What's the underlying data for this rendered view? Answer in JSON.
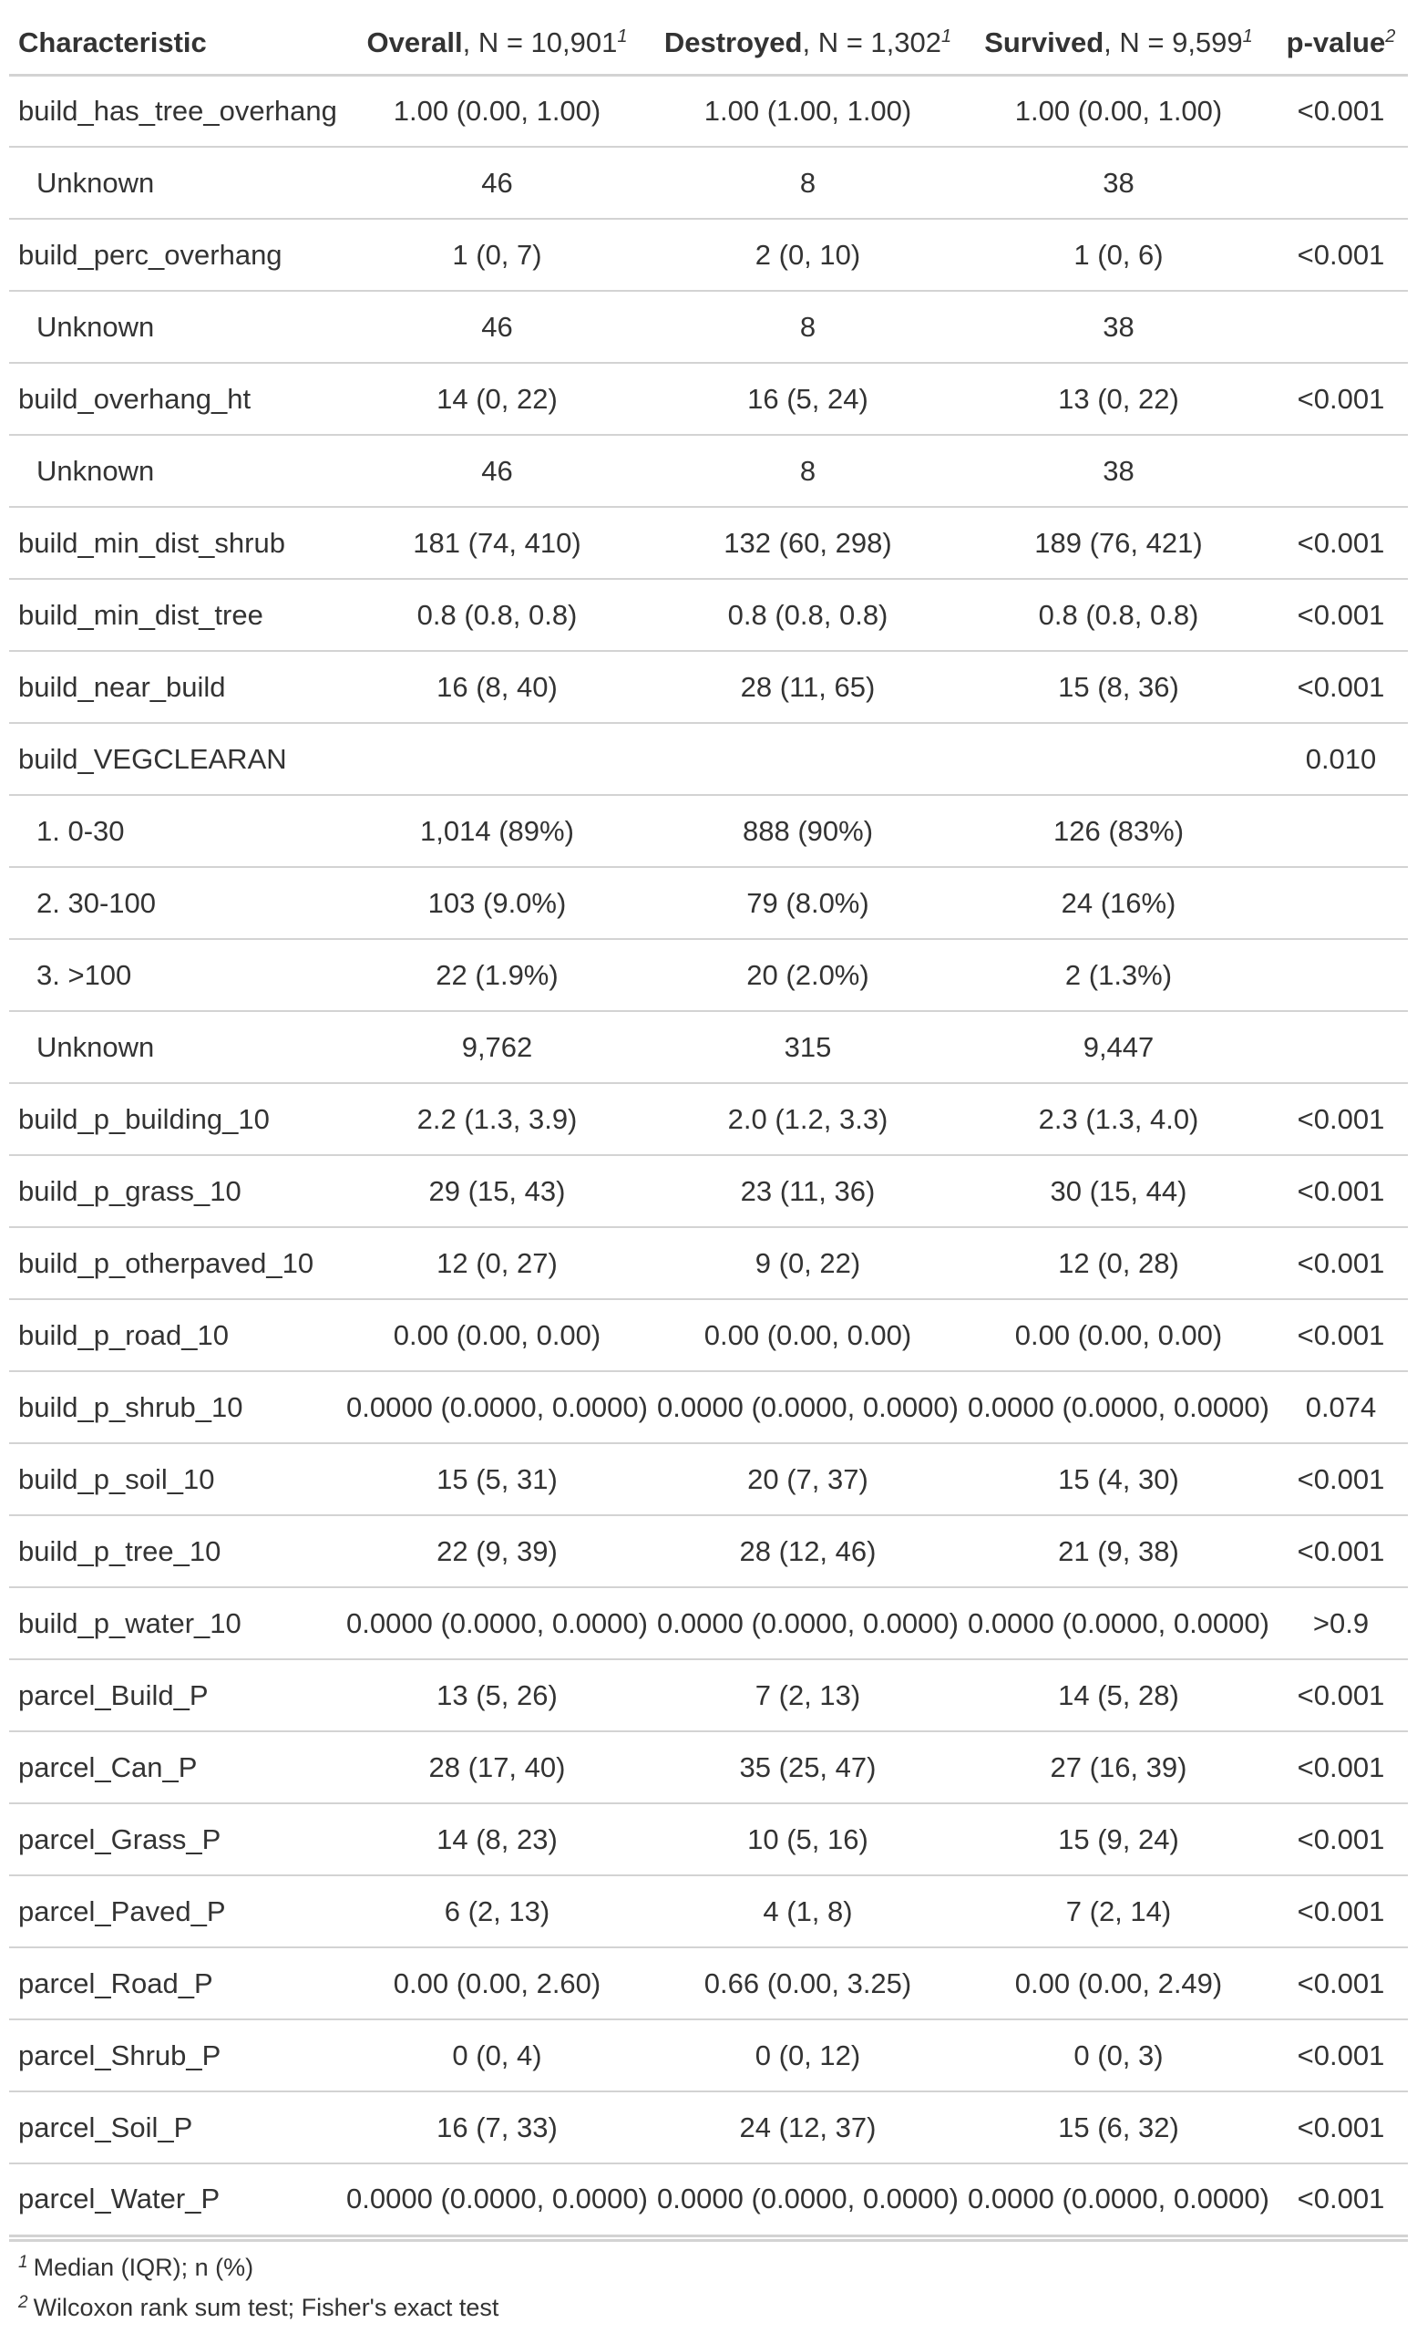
{
  "table": {
    "header": {
      "characteristic": "Characteristic",
      "overall_bold": "Overall",
      "overall_rest": ", N = 10,901",
      "overall_sup": "1",
      "destroyed_bold": "Destroyed",
      "destroyed_rest": ", N = 1,302",
      "destroyed_sup": "1",
      "survived_bold": "Survived",
      "survived_rest": ", N = 9,599",
      "survived_sup": "1",
      "pvalue_bold": "p-value",
      "pvalue_sup": "2"
    },
    "rows": [
      {
        "label": "build_has_tree_overhang",
        "overall": "1.00 (0.00, 1.00)",
        "destroyed": "1.00 (1.00, 1.00)",
        "survived": "1.00 (0.00, 1.00)",
        "p": "<0.001",
        "indent": false
      },
      {
        "label": "Unknown",
        "overall": "46",
        "destroyed": "8",
        "survived": "38",
        "p": "",
        "indent": true
      },
      {
        "label": "build_perc_overhang",
        "overall": "1 (0, 7)",
        "destroyed": "2 (0, 10)",
        "survived": "1 (0, 6)",
        "p": "<0.001",
        "indent": false
      },
      {
        "label": "Unknown",
        "overall": "46",
        "destroyed": "8",
        "survived": "38",
        "p": "",
        "indent": true
      },
      {
        "label": "build_overhang_ht",
        "overall": "14 (0, 22)",
        "destroyed": "16 (5, 24)",
        "survived": "13 (0, 22)",
        "p": "<0.001",
        "indent": false
      },
      {
        "label": "Unknown",
        "overall": "46",
        "destroyed": "8",
        "survived": "38",
        "p": "",
        "indent": true
      },
      {
        "label": "build_min_dist_shrub",
        "overall": "181 (74, 410)",
        "destroyed": "132 (60, 298)",
        "survived": "189 (76, 421)",
        "p": "<0.001",
        "indent": false
      },
      {
        "label": "build_min_dist_tree",
        "overall": "0.8 (0.8, 0.8)",
        "destroyed": "0.8 (0.8, 0.8)",
        "survived": "0.8 (0.8, 0.8)",
        "p": "<0.001",
        "indent": false
      },
      {
        "label": "build_near_build",
        "overall": "16 (8, 40)",
        "destroyed": "28 (11, 65)",
        "survived": "15 (8, 36)",
        "p": "<0.001",
        "indent": false
      },
      {
        "label": "build_VEGCLEARAN",
        "overall": "",
        "destroyed": "",
        "survived": "",
        "p": "0.010",
        "indent": false
      },
      {
        "label": "1. 0-30",
        "overall": "1,014 (89%)",
        "destroyed": "888 (90%)",
        "survived": "126 (83%)",
        "p": "",
        "indent": true
      },
      {
        "label": "2. 30-100",
        "overall": "103 (9.0%)",
        "destroyed": "79 (8.0%)",
        "survived": "24 (16%)",
        "p": "",
        "indent": true
      },
      {
        "label": "3. >100",
        "overall": "22 (1.9%)",
        "destroyed": "20 (2.0%)",
        "survived": "2 (1.3%)",
        "p": "",
        "indent": true
      },
      {
        "label": "Unknown",
        "overall": "9,762",
        "destroyed": "315",
        "survived": "9,447",
        "p": "",
        "indent": true
      },
      {
        "label": "build_p_building_10",
        "overall": "2.2 (1.3, 3.9)",
        "destroyed": "2.0 (1.2, 3.3)",
        "survived": "2.3 (1.3, 4.0)",
        "p": "<0.001",
        "indent": false
      },
      {
        "label": "build_p_grass_10",
        "overall": "29 (15, 43)",
        "destroyed": "23 (11, 36)",
        "survived": "30 (15, 44)",
        "p": "<0.001",
        "indent": false
      },
      {
        "label": "build_p_otherpaved_10",
        "overall": "12 (0, 27)",
        "destroyed": "9 (0, 22)",
        "survived": "12 (0, 28)",
        "p": "<0.001",
        "indent": false
      },
      {
        "label": "build_p_road_10",
        "overall": "0.00 (0.00, 0.00)",
        "destroyed": "0.00 (0.00, 0.00)",
        "survived": "0.00 (0.00, 0.00)",
        "p": "<0.001",
        "indent": false
      },
      {
        "label": "build_p_shrub_10",
        "overall": "0.0000 (0.0000, 0.0000)",
        "destroyed": "0.0000 (0.0000, 0.0000)",
        "survived": "0.0000 (0.0000, 0.0000)",
        "p": "0.074",
        "indent": false
      },
      {
        "label": "build_p_soil_10",
        "overall": "15 (5, 31)",
        "destroyed": "20 (7, 37)",
        "survived": "15 (4, 30)",
        "p": "<0.001",
        "indent": false
      },
      {
        "label": "build_p_tree_10",
        "overall": "22 (9, 39)",
        "destroyed": "28 (12, 46)",
        "survived": "21 (9, 38)",
        "p": "<0.001",
        "indent": false
      },
      {
        "label": "build_p_water_10",
        "overall": "0.0000 (0.0000, 0.0000)",
        "destroyed": "0.0000 (0.0000, 0.0000)",
        "survived": "0.0000 (0.0000, 0.0000)",
        "p": ">0.9",
        "indent": false
      },
      {
        "label": "parcel_Build_P",
        "overall": "13 (5, 26)",
        "destroyed": "7 (2, 13)",
        "survived": "14 (5, 28)",
        "p": "<0.001",
        "indent": false
      },
      {
        "label": "parcel_Can_P",
        "overall": "28 (17, 40)",
        "destroyed": "35 (25, 47)",
        "survived": "27 (16, 39)",
        "p": "<0.001",
        "indent": false
      },
      {
        "label": "parcel_Grass_P",
        "overall": "14 (8, 23)",
        "destroyed": "10 (5, 16)",
        "survived": "15 (9, 24)",
        "p": "<0.001",
        "indent": false
      },
      {
        "label": "parcel_Paved_P",
        "overall": "6 (2, 13)",
        "destroyed": "4 (1, 8)",
        "survived": "7 (2, 14)",
        "p": "<0.001",
        "indent": false
      },
      {
        "label": "parcel_Road_P",
        "overall": "0.00 (0.00, 2.60)",
        "destroyed": "0.66 (0.00, 3.25)",
        "survived": "0.00 (0.00, 2.49)",
        "p": "<0.001",
        "indent": false
      },
      {
        "label": "parcel_Shrub_P",
        "overall": "0 (0, 4)",
        "destroyed": "0 (0, 12)",
        "survived": "0 (0, 3)",
        "p": "<0.001",
        "indent": false
      },
      {
        "label": "parcel_Soil_P",
        "overall": "16 (7, 33)",
        "destroyed": "24 (12, 37)",
        "survived": "15 (6, 32)",
        "p": "<0.001",
        "indent": false
      },
      {
        "label": "parcel_Water_P",
        "overall": "0.0000 (0.0000, 0.0000)",
        "destroyed": "0.0000 (0.0000, 0.0000)",
        "survived": "0.0000 (0.0000, 0.0000)",
        "p": "<0.001",
        "indent": false
      }
    ],
    "footnotes": [
      {
        "mark": "1",
        "text": "Median (IQR); n (%)"
      },
      {
        "mark": "2",
        "text": "Wilcoxon rank sum test; Fisher's exact test"
      }
    ]
  }
}
